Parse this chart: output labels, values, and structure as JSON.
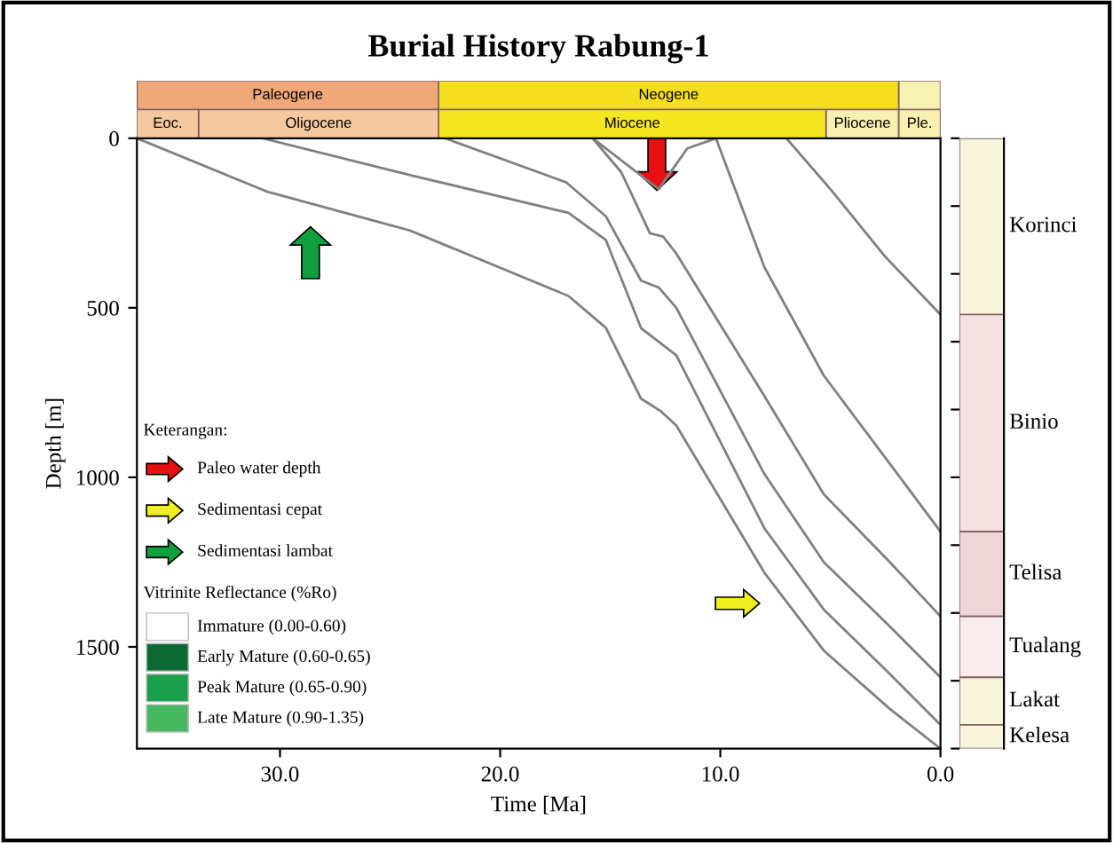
{
  "chart_data": [
    {
      "type": "bar",
      "title": "Burial History Rabung-1",
      "orientation": "horizontal",
      "stacked": true,
      "categories": [
        null,
        null
      ],
      "xlim": [
        36.5,
        0
      ],
      "tick_labels": false,
      "series": [
        {
          "color": "#f8f2b0",
          "values": [
            1.9,
            null
          ]
        },
        {
          "name": "Neogene",
          "color": "#f5de1e",
          "values": [
            20.9,
            null
          ]
        },
        {
          "name": "Paleogene",
          "color": "#f0a878",
          "values": [
            13.7,
            null
          ]
        },
        {
          "name": "Ple.",
          "color": "#f8f0b0",
          "values": [
            null,
            1.9
          ]
        },
        {
          "name": "Pliocene",
          "color": "#f8f0b0",
          "values": [
            null,
            3.3
          ]
        },
        {
          "name": "Miocene",
          "color": "#f5e820",
          "values": [
            null,
            17.6
          ]
        },
        {
          "name": "Oligocene",
          "color": "#f5c8a0",
          "values": [
            null,
            10.9
          ]
        },
        {
          "name": "Eoc.",
          "color": "#f5c8a0",
          "values": [
            null,
            2.8
          ]
        }
      ]
    },
    {
      "type": "line",
      "xlabel": "Time [Ma]",
      "ylabel": "Depth [m]",
      "xlim": [
        36.5,
        0
      ],
      "ylim": [
        1800,
        0
      ],
      "xticks": [
        {
          "value": 30,
          "label": "30.0"
        },
        {
          "value": 20,
          "label": "20.0"
        },
        {
          "value": 10,
          "label": "10.0"
        },
        {
          "value": 0,
          "label": "0.0"
        }
      ],
      "yticks": [
        0,
        500,
        1000,
        1500
      ],
      "series": [
        {
          "color": "#808080",
          "x": [
            36.5,
            30.6,
            24.1,
            16.9,
            15.2,
            13.6,
            12.7,
            12.0,
            8.0,
            5.3,
            2.3,
            0
          ],
          "values": [
            0,
            157,
            272,
            465,
            559,
            768,
            805,
            847,
            1281,
            1511,
            1683,
            1800
          ]
        },
        {
          "color": "#808080",
          "x": [
            30.8,
            24.0,
            16.9,
            15.2,
            13.6,
            12.8,
            12.0,
            8.0,
            5.3,
            2.3,
            0
          ],
          "values": [
            0,
            110,
            220,
            300,
            560,
            600,
            640,
            1150,
            1390,
            1580,
            1730
          ]
        },
        {
          "color": "#808080",
          "x": [
            22.5,
            17.0,
            15.2,
            13.6,
            12.8,
            12.0,
            8.0,
            5.3,
            2.3,
            0
          ],
          "values": [
            0,
            130,
            230,
            420,
            440,
            500,
            990,
            1250,
            1440,
            1590
          ]
        },
        {
          "color": "#808080",
          "x": [
            15.8,
            14.5,
            13.2,
            12.6,
            12.0,
            8.0,
            5.3,
            2.3,
            0
          ],
          "values": [
            0,
            100,
            280,
            290,
            340,
            760,
            1050,
            1250,
            1410
          ]
        },
        {
          "color": "#808080",
          "x": [
            10.2,
            8.0,
            5.3,
            2.3,
            0
          ],
          "values": [
            0,
            380,
            700,
            960,
            1160
          ]
        },
        {
          "color": "#808080",
          "x": [
            7.0,
            5.0,
            2.5,
            0
          ],
          "values": [
            0,
            150,
            350,
            520
          ]
        },
        {
          "color": "#808080",
          "x": [
            15.8,
            12.8,
            11.5,
            10.2
          ],
          "values": [
            0,
            150,
            30,
            0
          ]
        }
      ],
      "annotations": [
        "Keterangan:",
        "Paleo water depth",
        "Sedimentasi cepat",
        "Sedimentasi lambat",
        "Vitrinite Reflectance (%Ro)",
        "Immature (0.00-0.60)",
        "Early Mature (0.60-0.65)",
        "Peak Mature (0.65-0.90)",
        "Late Mature (0.90-1.35)"
      ]
    },
    {
      "type": "bar",
      "stacked": true,
      "categories": [
        null
      ],
      "ylim": [
        1800,
        0
      ],
      "tick_labels": false,
      "series": [
        {
          "name": "Korinci",
          "color": "#f8f4dc",
          "values": [
            520
          ]
        },
        {
          "name": "Binio",
          "color": "#f4e2e2",
          "values": [
            640
          ]
        },
        {
          "name": "Telisa",
          "color": "#eed6d6",
          "values": [
            250
          ]
        },
        {
          "name": "Tualang",
          "color": "#f8ecec",
          "values": [
            180
          ]
        },
        {
          "name": "Lakat",
          "color": "#f8f4dc",
          "values": [
            140
          ]
        },
        {
          "name": "Kelesa",
          "color": "#f8f4dc",
          "values": [
            70
          ]
        }
      ]
    }
  ]
}
